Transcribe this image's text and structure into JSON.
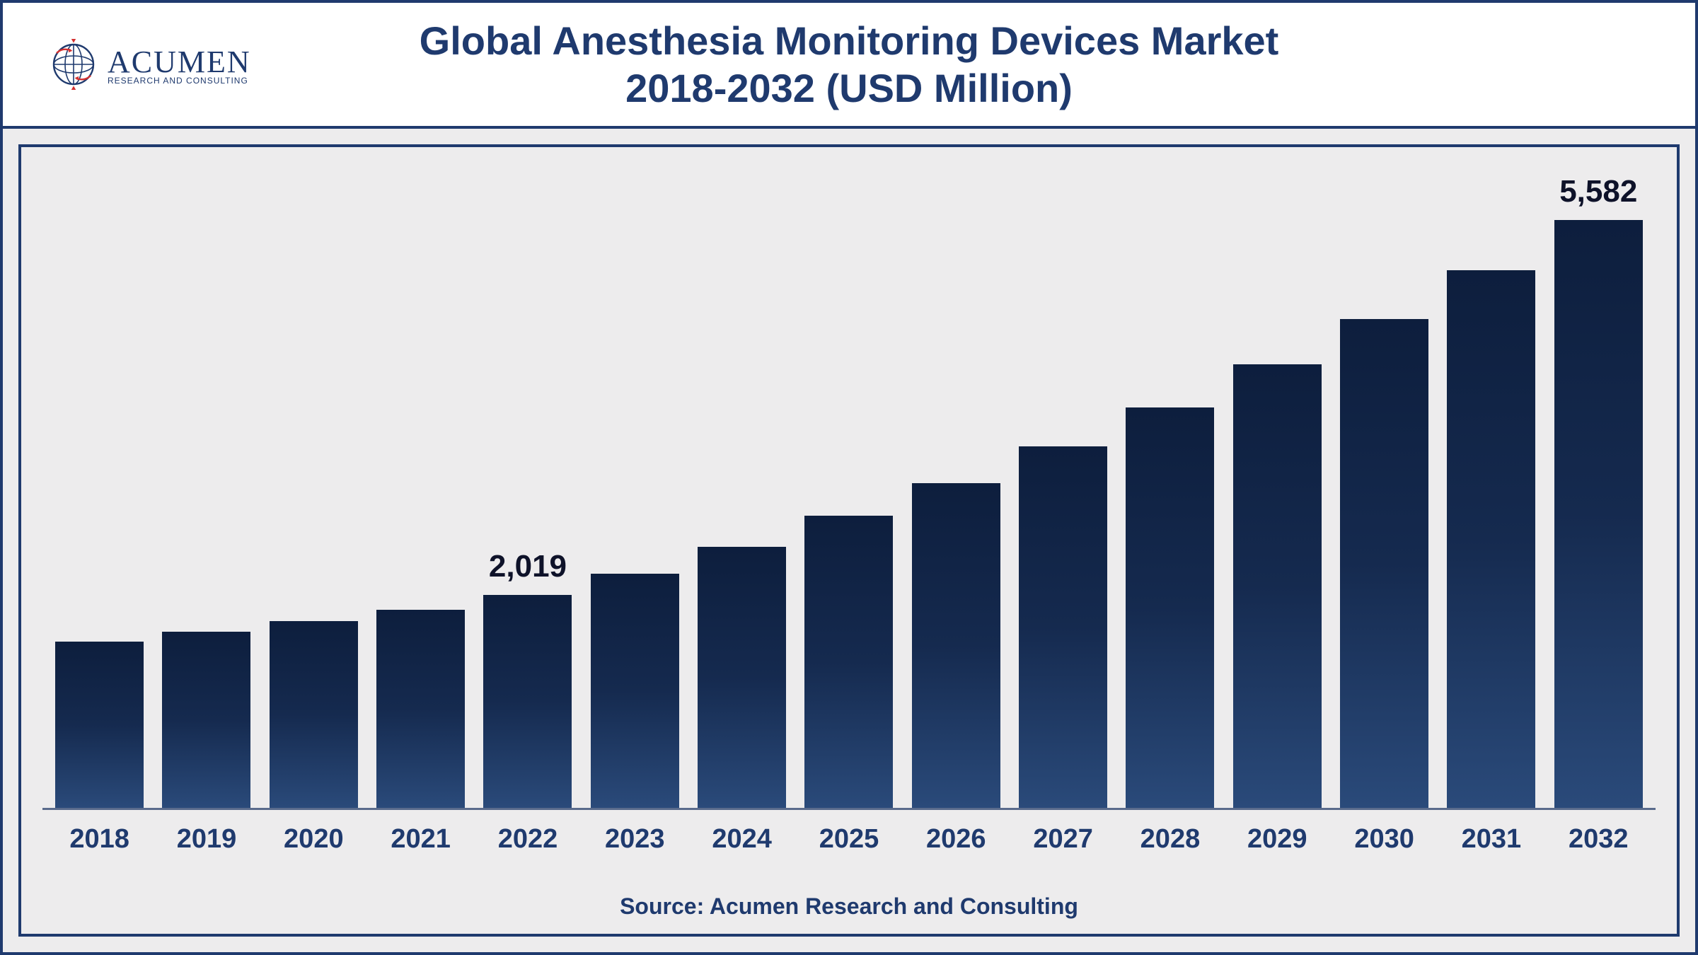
{
  "header": {
    "title_line1": "Global Anesthesia Monitoring Devices Market",
    "title_line2": "2018-2032 (USD Million)",
    "title_fontsize": 56,
    "title_color": "#1f3a6e"
  },
  "logo": {
    "main": "ACUMEN",
    "sub": "RESEARCH AND CONSULTING",
    "main_color": "#1f3a6e",
    "accent_color": "#d32f2f"
  },
  "chart": {
    "type": "bar",
    "categories": [
      "2018",
      "2019",
      "2020",
      "2021",
      "2022",
      "2023",
      "2024",
      "2025",
      "2026",
      "2027",
      "2028",
      "2029",
      "2030",
      "2031",
      "2032"
    ],
    "values": [
      1580,
      1670,
      1770,
      1880,
      2019,
      2220,
      2480,
      2770,
      3080,
      3430,
      3800,
      4210,
      4640,
      5100,
      5582
    ],
    "value_labels": [
      "",
      "",
      "",
      "",
      "2,019",
      "",
      "",
      "",
      "",
      "",
      "",
      "",
      "",
      "",
      "5,582"
    ],
    "ylim": [
      0,
      6000
    ],
    "bar_gradient_top": "#0d1e3d",
    "bar_gradient_mid": "#152a4f",
    "bar_gradient_bottom": "#2a4a7a",
    "bar_width": 0.82,
    "background_color": "#edeced",
    "border_color": "#1f3a6e",
    "axis_color": "#5a6b8c",
    "xlabel_fontsize": 38,
    "xlabel_color": "#1f3a6e",
    "value_label_fontsize": 44,
    "value_label_color": "#0e1229"
  },
  "source": {
    "text": "Source: Acumen Research and Consulting",
    "fontsize": 32,
    "color": "#1f3a6e"
  }
}
